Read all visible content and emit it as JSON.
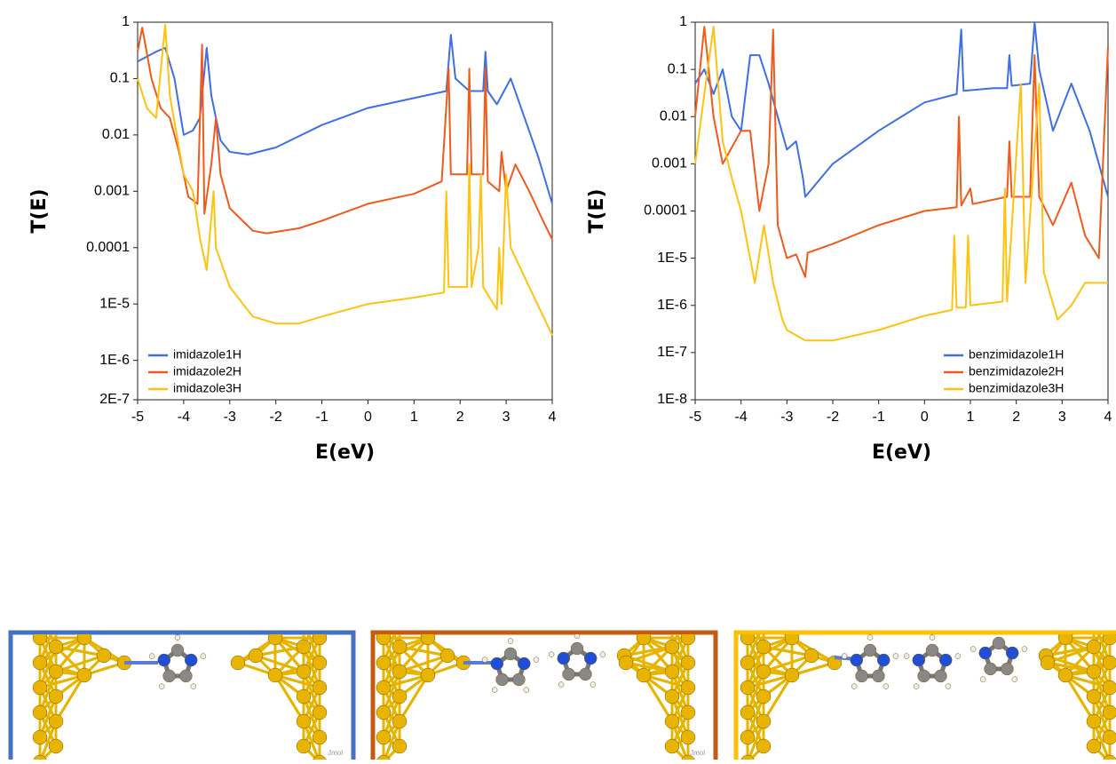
{
  "chart_data": [
    {
      "type": "line",
      "xlabel": "E(eV)",
      "ylabel": "T(E)",
      "log_y": true,
      "grid": false,
      "legend": "lower left",
      "xlim": [
        -5,
        4
      ],
      "xticks": [
        -5,
        -4,
        -3,
        -2,
        -1,
        0,
        1,
        2,
        3,
        4
      ],
      "ylim": [
        2e-07,
        1
      ],
      "yticks": [
        1,
        0.1,
        0.01,
        0.001,
        0.0001,
        {
          "value": 1e-05,
          "label": "1E-5"
        },
        {
          "value": 1e-06,
          "label": "1E-6"
        },
        {
          "value": 2e-07,
          "label": "2E-7"
        }
      ],
      "series": [
        {
          "name": "imidazole1H",
          "color": "#3d6fe6",
          "x": [
            -5,
            -4.6,
            -4.4,
            -4.2,
            -4,
            -3.8,
            -3.65,
            -3.5,
            -3.4,
            -3.2,
            -3,
            -2.6,
            -2,
            -1,
            0,
            1,
            1.7,
            1.8,
            1.9,
            2.2,
            2.5,
            2.55,
            2.6,
            2.8,
            3.1,
            3.4,
            3.7,
            4
          ],
          "values": [
            0.2,
            0.3,
            0.35,
            0.1,
            0.01,
            0.012,
            0.02,
            0.35,
            0.05,
            0.008,
            0.005,
            0.0045,
            0.006,
            0.015,
            0.03,
            0.045,
            0.06,
            0.6,
            0.1,
            0.06,
            0.06,
            0.3,
            0.06,
            0.035,
            0.1,
            0.02,
            0.004,
            0.0006
          ]
        },
        {
          "name": "imidazole2H",
          "color": "#f05a1a",
          "x": [
            -5,
            -4.9,
            -4.7,
            -4.5,
            -4.3,
            -4.1,
            -3.9,
            -3.7,
            -3.6,
            -3.55,
            -3.4,
            -3.3,
            -3.2,
            -3,
            -2.5,
            -2.2,
            -1.5,
            -1,
            0,
            1,
            1.6,
            1.75,
            1.8,
            2.15,
            2.2,
            2.25,
            2.5,
            2.55,
            2.6,
            2.85,
            2.9,
            3,
            3.2,
            3.5,
            3.8,
            4
          ],
          "values": [
            0.3,
            0.8,
            0.1,
            0.03,
            0.02,
            0.005,
            0.0008,
            0.0006,
            0.4,
            0.0004,
            0.003,
            0.02,
            0.002,
            0.0005,
            0.0002,
            0.00018,
            0.00022,
            0.0003,
            0.0006,
            0.0009,
            0.0015,
            0.15,
            0.002,
            0.002,
            0.15,
            0.002,
            0.002,
            0.15,
            0.0015,
            0.001,
            0.005,
            0.001,
            0.003,
            0.001,
            0.0003,
            0.00014
          ]
        },
        {
          "name": "imidazole3H",
          "color": "#ffc20e",
          "x": [
            -5,
            -4.8,
            -4.6,
            -4.4,
            -4.3,
            -4,
            -3.8,
            -3.65,
            -3.5,
            -3.35,
            -3.3,
            -3,
            -2.5,
            -2,
            -1.5,
            -1,
            0,
            1,
            1.65,
            1.7,
            1.75,
            2.15,
            2.2,
            2.25,
            2.4,
            2.45,
            2.5,
            2.8,
            2.85,
            2.9,
            3,
            3.1,
            3.5,
            4
          ],
          "values": [
            0.1,
            0.03,
            0.02,
            0.9,
            0.05,
            0.002,
            0.001,
            0.00015,
            4e-05,
            0.001,
            0.0001,
            2e-05,
            6e-06,
            4.5e-06,
            4.5e-06,
            6e-06,
            1e-05,
            1.3e-05,
            1.6e-05,
            0.001,
            2e-05,
            2e-05,
            0.003,
            2e-05,
            0.0001,
            0.002,
            2e-05,
            8e-06,
            0.0001,
            1e-05,
            0.002,
            0.0001,
            2e-05,
            2.8e-06
          ]
        }
      ]
    },
    {
      "type": "line",
      "xlabel": "E(eV)",
      "ylabel": "T(E)",
      "log_y": true,
      "grid": false,
      "legend": "lower right",
      "xlim": [
        -5,
        4
      ],
      "xticks": [
        -5,
        -4,
        -3,
        -2,
        -1,
        0,
        1,
        2,
        3,
        4
      ],
      "ylim": [
        1e-08,
        1
      ],
      "yticks": [
        1,
        0.1,
        0.01,
        0.001,
        0.0001,
        {
          "value": 1e-05,
          "label": "1E-5"
        },
        {
          "value": 1e-06,
          "label": "1E-6"
        },
        {
          "value": 1e-07,
          "label": "1E-7"
        },
        {
          "value": 1e-08,
          "label": "1E-8"
        }
      ],
      "series": [
        {
          "name": "benzimidazole1H",
          "color": "#3d6fe6",
          "x": [
            -5,
            -4.8,
            -4.6,
            -4.4,
            -4.2,
            -4,
            -3.8,
            -3.6,
            -3.4,
            -3.2,
            -3,
            -2.8,
            -2.65,
            -2.6,
            -2,
            -1,
            0,
            0.7,
            0.8,
            0.85,
            1.5,
            1.8,
            1.85,
            1.9,
            2.3,
            2.4,
            2.5,
            2.8,
            3.2,
            3.6,
            4
          ],
          "values": [
            0.05,
            0.1,
            0.03,
            0.1,
            0.01,
            0.005,
            0.2,
            0.2,
            0.05,
            0.01,
            0.002,
            0.003,
            0.0005,
            0.0002,
            0.001,
            0.005,
            0.02,
            0.03,
            0.7,
            0.035,
            0.04,
            0.04,
            0.2,
            0.045,
            0.05,
            1,
            0.1,
            0.005,
            0.05,
            0.005,
            0.0002
          ]
        },
        {
          "name": "benzimidazole2H",
          "color": "#f05a1a",
          "x": [
            -5,
            -4.8,
            -4.6,
            -4.4,
            -4,
            -3.8,
            -3.6,
            -3.4,
            -3.3,
            -3.2,
            -3,
            -2.8,
            -2.6,
            -2.55,
            -2,
            -1,
            0,
            0.7,
            0.75,
            0.8,
            1,
            1.05,
            1.8,
            1.85,
            1.9,
            2.3,
            2.4,
            2.5,
            2.8,
            3.2,
            3.5,
            3.8,
            4
          ],
          "values": [
            0.01,
            0.8,
            0.01,
            0.001,
            0.005,
            0.005,
            0.0001,
            0.001,
            0.7,
            5e-05,
            1e-05,
            1.2e-05,
            4e-06,
            1.3e-05,
            2e-05,
            5e-05,
            0.0001,
            0.00012,
            0.01,
            0.00013,
            0.0003,
            0.00014,
            0.0002,
            0.003,
            0.0002,
            0.0002,
            0.2,
            0.0002,
            5e-05,
            0.0004,
            3e-05,
            1e-05,
            0.3
          ]
        },
        {
          "name": "benzimidazole3H",
          "color": "#ffc20e",
          "x": [
            -5,
            -4.8,
            -4.6,
            -4.4,
            -4.2,
            -4,
            -3.7,
            -3.5,
            -3.3,
            -3.1,
            -3,
            -2.6,
            -2,
            -1,
            0,
            0.6,
            0.65,
            0.7,
            0.9,
            0.95,
            1,
            1.7,
            1.75,
            1.8,
            2.1,
            2.2,
            2.5,
            2.6,
            2.9,
            3.2,
            3.5,
            4
          ],
          "values": [
            0.001,
            0.03,
            0.8,
            0.003,
            0.0005,
            0.0001,
            3e-06,
            5e-05,
            3e-06,
            5e-07,
            3e-07,
            1.8e-07,
            1.8e-07,
            3e-07,
            6e-07,
            8e-07,
            3e-05,
            9e-07,
            9e-07,
            3e-05,
            1e-06,
            1.2e-06,
            0.0003,
            1.2e-06,
            0.05,
            3e-06,
            0.05,
            5e-06,
            5e-07,
            1e-06,
            3e-06,
            3e-06
          ]
        }
      ]
    }
  ],
  "panels": [
    {
      "watermark": "Jmol"
    },
    {
      "watermark": "Jmol"
    }
  ]
}
